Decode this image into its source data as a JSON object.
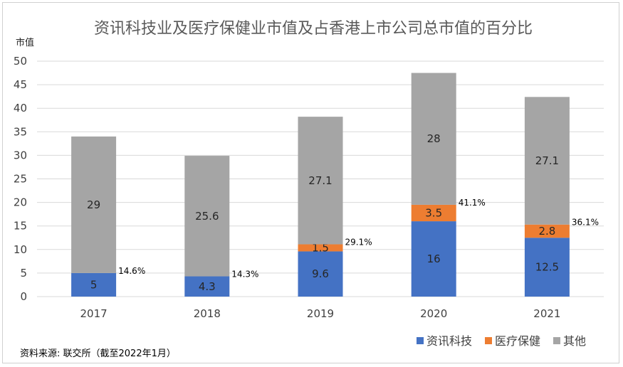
{
  "chart_data": {
    "type": "bar",
    "stacked": true,
    "title": "资讯科技业及医疗保健业市值及占香港上市公司总市值的百分比",
    "ylabel": "市值",
    "xlabel": "",
    "categories": [
      "2017",
      "2018",
      "2019",
      "2020",
      "2021"
    ],
    "ylim": [
      0,
      50
    ],
    "yticks": [
      0,
      5,
      10,
      15,
      20,
      25,
      30,
      35,
      40,
      45,
      50
    ],
    "grid": true,
    "legend_position": "bottom-right",
    "series": [
      {
        "name": "资讯科技",
        "color": "#4472c4",
        "values": [
          5,
          4.3,
          9.6,
          16,
          12.5
        ]
      },
      {
        "name": "医疗保健",
        "color": "#ed7d31",
        "values": [
          0,
          0,
          1.5,
          3.5,
          2.8
        ]
      },
      {
        "name": "其他",
        "color": "#a5a5a5",
        "values": [
          29,
          25.6,
          27.1,
          28,
          27.1
        ]
      }
    ],
    "totals": [
      "",
      "29.9",
      "38.2",
      "47.5",
      "42.4"
    ],
    "percent_labels": [
      "14.6%",
      "14.3%",
      "29.1%",
      "41.1%",
      "36.1%"
    ],
    "source": "资料来源: 联交所（截至2022年1月）"
  }
}
